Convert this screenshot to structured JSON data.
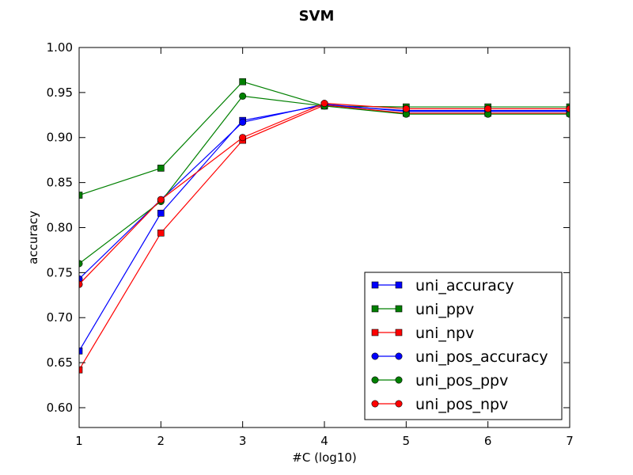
{
  "chart_data": {
    "type": "line",
    "title": "SVM",
    "xlabel": "#C (log10)",
    "ylabel": "accuracy",
    "xlim": [
      1,
      7
    ],
    "ylim": [
      0.578,
      1.0
    ],
    "x": [
      1,
      2,
      3,
      4,
      5,
      6,
      7
    ],
    "xticks": [
      "1",
      "2",
      "3",
      "4",
      "5",
      "6",
      "7"
    ],
    "yticks": [
      "0.60",
      "0.65",
      "0.70",
      "0.75",
      "0.80",
      "0.85",
      "0.90",
      "0.95",
      "1.00"
    ],
    "ytick_values": [
      0.6,
      0.65,
      0.7,
      0.75,
      0.8,
      0.85,
      0.9,
      0.95,
      1.0
    ],
    "grid": false,
    "legend_position": "lower-right",
    "series": [
      {
        "name": "uni_accuracy",
        "color": "#0000ff",
        "marker": "square",
        "values": [
          0.663,
          0.816,
          0.919,
          0.936,
          0.93,
          0.93,
          0.93
        ]
      },
      {
        "name": "uni_ppv",
        "color": "#008000",
        "marker": "square",
        "values": [
          0.836,
          0.866,
          0.962,
          0.935,
          0.934,
          0.934,
          0.934
        ]
      },
      {
        "name": "uni_npv",
        "color": "#ff0000",
        "marker": "square",
        "values": [
          0.642,
          0.794,
          0.897,
          0.936,
          0.927,
          0.927,
          0.927
        ]
      },
      {
        "name": "uni_pos_accuracy",
        "color": "#0000ff",
        "marker": "circle",
        "values": [
          0.743,
          0.831,
          0.917,
          0.937,
          0.929,
          0.929,
          0.929
        ]
      },
      {
        "name": "uni_pos_ppv",
        "color": "#008000",
        "marker": "circle",
        "values": [
          0.76,
          0.829,
          0.946,
          0.935,
          0.926,
          0.926,
          0.926
        ]
      },
      {
        "name": "uni_pos_npv",
        "color": "#ff0000",
        "marker": "circle",
        "values": [
          0.737,
          0.831,
          0.9,
          0.938,
          0.932,
          0.932,
          0.932
        ]
      }
    ]
  }
}
